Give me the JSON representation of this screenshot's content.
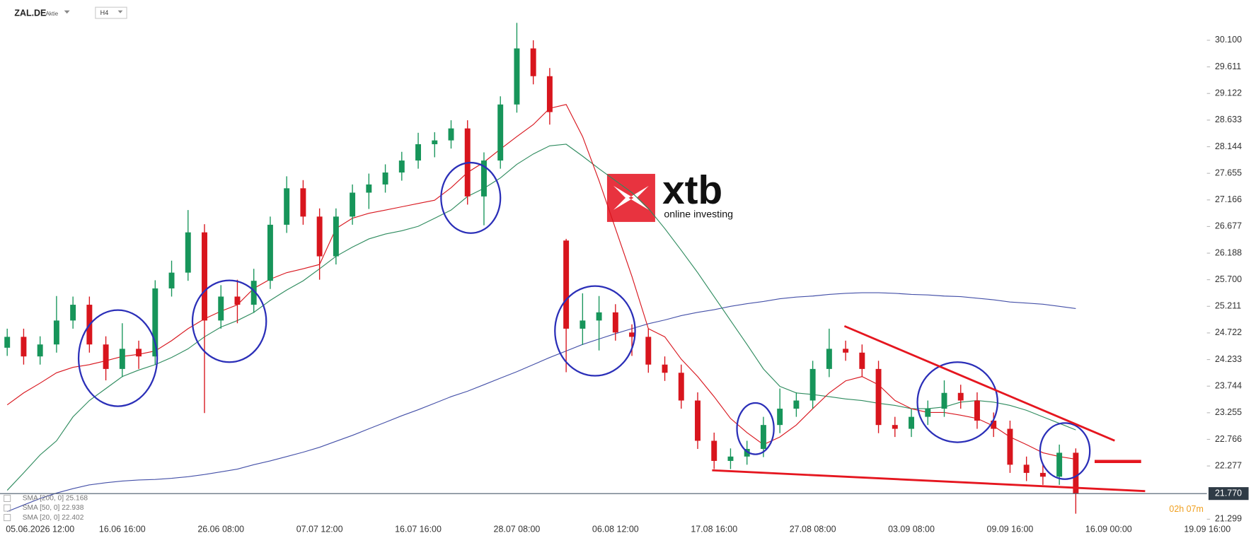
{
  "header": {
    "symbol": "ZAL.DE",
    "kind": "Aktie",
    "timeframe": "H4"
  },
  "logo": {
    "brand": "xtb",
    "tagline": "online investing"
  },
  "chart_data": {
    "type": "candlestick",
    "categories": [
      null,
      null,
      "05.06.2026 12:00",
      null,
      null,
      null,
      null,
      "16.06 16:00",
      null,
      null,
      null,
      null,
      null,
      "26.06 08:00",
      null,
      null,
      null,
      null,
      null,
      "07.07 12:00",
      null,
      null,
      null,
      null,
      null,
      "16.07 16:00",
      null,
      null,
      null,
      null,
      null,
      "28.07 08:00",
      null,
      null,
      null,
      null,
      null,
      "06.08 12:00",
      null,
      null,
      null,
      null,
      null,
      "17.08 16:00",
      null,
      null,
      null,
      null,
      null,
      "27.08 08:00",
      null,
      null,
      null,
      null,
      null,
      "03.09 08:00",
      null,
      null,
      null,
      null,
      null,
      "09.09 16:00",
      null,
      null,
      null,
      null,
      null,
      "16.09 00:00",
      null,
      null,
      null,
      null,
      null,
      "19.09 16:00"
    ],
    "open": [
      24.45,
      24.65,
      24.29,
      24.51,
      24.95,
      25.24,
      24.51,
      24.06,
      24.43,
      24.29,
      25.54,
      25.83,
      26.57,
      24.95,
      25.39,
      25.24,
      25.68,
      26.71,
      27.38,
      26.86,
      26.13,
      26.86,
      27.3,
      27.45,
      27.67,
      27.89,
      28.19,
      28.26,
      28.48,
      27.23,
      27.89,
      28.92,
      29.95,
      29.44,
      26.42,
      24.8,
      24.95,
      25.1,
      24.73,
      24.65,
      24.14,
      23.99,
      23.48,
      22.74,
      22.37,
      22.45,
      22.59,
      23.03,
      23.33,
      23.48,
      24.06,
      24.43,
      24.36,
      24.06,
      23.03,
      22.96,
      23.18,
      23.33,
      23.62,
      23.48,
      23.11,
      22.96,
      22.3,
      22.15,
      22.08,
      22.52,
      null,
      null,
      null,
      null,
      null,
      null,
      null,
      null
    ],
    "high": [
      24.8,
      24.8,
      24.66,
      25.4,
      25.39,
      25.39,
      24.66,
      24.9,
      24.58,
      25.69,
      26.05,
      26.98,
      26.72,
      25.6,
      25.7,
      25.9,
      26.86,
      27.6,
      27.53,
      27.01,
      27.01,
      27.45,
      27.65,
      27.82,
      28.05,
      28.4,
      28.41,
      28.63,
      28.63,
      28.04,
      29.07,
      30.42,
      30.1,
      29.59,
      26.45,
      25.45,
      25.4,
      25.25,
      24.88,
      24.8,
      24.29,
      24.14,
      23.63,
      22.89,
      22.6,
      22.74,
      23.18,
      23.7,
      23.63,
      24.21,
      24.8,
      24.58,
      24.51,
      24.21,
      23.18,
      23.33,
      23.48,
      23.85,
      23.77,
      23.63,
      23.26,
      23.11,
      22.45,
      22.3,
      22.67,
      22.6,
      null,
      null,
      null,
      null,
      null,
      null,
      null,
      null
    ],
    "low": [
      24.3,
      24.14,
      24.14,
      24.36,
      24.8,
      24.36,
      23.85,
      23.91,
      24.06,
      24.14,
      25.39,
      25.68,
      23.25,
      24.8,
      24.9,
      25.09,
      25.53,
      26.56,
      26.71,
      25.7,
      25.98,
      26.71,
      27.0,
      27.3,
      27.52,
      27.74,
      27.95,
      28.11,
      27.08,
      26.7,
      27.74,
      28.77,
      29.29,
      28.55,
      24.0,
      24.5,
      24.4,
      24.58,
      24.3,
      23.99,
      23.84,
      23.33,
      22.59,
      22.22,
      22.22,
      22.3,
      22.44,
      22.88,
      23.18,
      23.33,
      23.91,
      24.21,
      23.91,
      22.88,
      22.81,
      22.81,
      23.03,
      23.18,
      23.33,
      22.96,
      22.81,
      22.15,
      22.0,
      21.93,
      21.93,
      21.4,
      null,
      null,
      null,
      null,
      null,
      null,
      null,
      null
    ],
    "close": [
      24.65,
      24.29,
      24.51,
      24.95,
      25.24,
      24.51,
      24.06,
      24.43,
      24.29,
      25.54,
      25.83,
      26.57,
      24.95,
      25.39,
      25.24,
      25.68,
      26.71,
      27.38,
      26.86,
      26.13,
      26.86,
      27.3,
      27.45,
      27.67,
      27.89,
      28.19,
      28.26,
      28.48,
      27.23,
      27.89,
      28.92,
      29.95,
      29.44,
      28.78,
      24.8,
      24.95,
      25.1,
      24.73,
      24.65,
      24.14,
      23.99,
      23.48,
      22.74,
      22.37,
      22.45,
      22.59,
      23.03,
      23.33,
      23.48,
      24.06,
      24.43,
      24.36,
      24.06,
      23.03,
      22.96,
      23.18,
      23.33,
      23.62,
      23.48,
      23.11,
      22.96,
      22.3,
      22.15,
      22.08,
      22.52,
      21.77,
      null,
      null,
      null,
      null,
      null,
      null,
      null,
      null
    ],
    "up_color": "#17955a",
    "down_color": "#d8151d",
    "overlays": [
      {
        "name": "SMA [200, 0] 25.168",
        "color": "#4450a8",
        "values": [
          21.44,
          21.56,
          21.68,
          21.78,
          21.86,
          21.93,
          21.97,
          22.0,
          22.02,
          22.03,
          22.05,
          22.08,
          22.12,
          22.17,
          22.22,
          22.3,
          22.37,
          22.45,
          22.53,
          22.62,
          22.73,
          22.84,
          22.96,
          23.08,
          23.2,
          23.31,
          23.43,
          23.55,
          23.65,
          23.77,
          23.89,
          24.01,
          24.14,
          24.27,
          24.39,
          24.51,
          24.61,
          24.71,
          24.8,
          24.89,
          24.96,
          25.04,
          25.1,
          25.15,
          25.21,
          25.26,
          25.3,
          25.35,
          25.38,
          25.4,
          25.43,
          25.45,
          25.46,
          25.46,
          25.45,
          25.43,
          25.42,
          25.4,
          25.39,
          25.36,
          25.33,
          25.29,
          25.27,
          25.25,
          25.21,
          25.17,
          null,
          null,
          null,
          null,
          null,
          null,
          null,
          null
        ]
      },
      {
        "name": "SMA [50, 0] 22.938",
        "color": "#2e8b5e",
        "values": [
          21.83,
          22.15,
          22.48,
          22.74,
          23.18,
          23.48,
          23.7,
          23.92,
          24.04,
          24.14,
          24.27,
          24.43,
          24.65,
          24.83,
          24.95,
          25.1,
          25.32,
          25.51,
          25.68,
          25.9,
          26.13,
          26.3,
          26.45,
          26.54,
          26.6,
          26.68,
          26.83,
          26.98,
          27.23,
          27.38,
          27.57,
          27.82,
          28.01,
          28.16,
          28.19,
          27.97,
          27.74,
          27.52,
          27.3,
          27.01,
          26.64,
          26.24,
          25.83,
          25.39,
          24.95,
          24.51,
          24.06,
          23.74,
          23.62,
          23.59,
          23.55,
          23.51,
          23.48,
          23.43,
          23.39,
          23.33,
          23.33,
          23.36,
          23.45,
          23.48,
          23.45,
          23.39,
          23.3,
          23.18,
          23.06,
          22.94,
          null,
          null,
          null,
          null,
          null,
          null,
          null,
          null
        ]
      },
      {
        "name": "SMA [20, 0] 22.402",
        "color": "#d8151d",
        "values": [
          23.4,
          23.62,
          23.8,
          23.99,
          24.09,
          24.14,
          24.21,
          24.29,
          24.33,
          24.39,
          24.58,
          24.8,
          24.98,
          25.12,
          25.24,
          25.54,
          25.71,
          25.83,
          25.9,
          25.98,
          26.64,
          26.83,
          26.92,
          26.98,
          27.04,
          27.1,
          27.16,
          27.39,
          27.67,
          27.86,
          28.1,
          28.33,
          28.55,
          28.85,
          28.92,
          28.33,
          27.52,
          26.64,
          25.76,
          24.8,
          24.65,
          24.24,
          23.92,
          23.55,
          23.15,
          22.89,
          22.67,
          22.81,
          23.03,
          23.33,
          23.62,
          23.84,
          23.92,
          23.77,
          23.48,
          23.33,
          23.26,
          23.26,
          23.21,
          23.15,
          23.01,
          22.81,
          22.67,
          22.52,
          22.45,
          22.4,
          null,
          null,
          null,
          null,
          null,
          null,
          null,
          null
        ]
      }
    ],
    "ylim": [
      21.27,
      30.84
    ],
    "yticks": [
      {
        "value": 30.1,
        "label": "30.100"
      },
      {
        "value": 29.611,
        "label": "29.611"
      },
      {
        "value": 29.122,
        "label": "29.122"
      },
      {
        "value": 28.633,
        "label": "28.633"
      },
      {
        "value": 28.144,
        "label": "28.144"
      },
      {
        "value": 27.655,
        "label": "27.655"
      },
      {
        "value": 27.166,
        "label": "27.166"
      },
      {
        "value": 26.677,
        "label": "26.677"
      },
      {
        "value": 26.188,
        "label": "26.188"
      },
      {
        "value": 25.7,
        "label": "25.700"
      },
      {
        "value": 25.211,
        "label": "25.211"
      },
      {
        "value": 24.722,
        "label": "24.722"
      },
      {
        "value": 24.233,
        "label": "24.233"
      },
      {
        "value": 23.744,
        "label": "23.744"
      },
      {
        "value": 23.255,
        "label": "23.255"
      },
      {
        "value": 22.766,
        "label": "22.766"
      },
      {
        "value": 22.277,
        "label": "22.277"
      },
      {
        "value": 21.299,
        "label": "21.299"
      }
    ],
    "current_price": {
      "value": 21.77,
      "label": "21.770"
    },
    "countdown": "02h 07m"
  }
}
